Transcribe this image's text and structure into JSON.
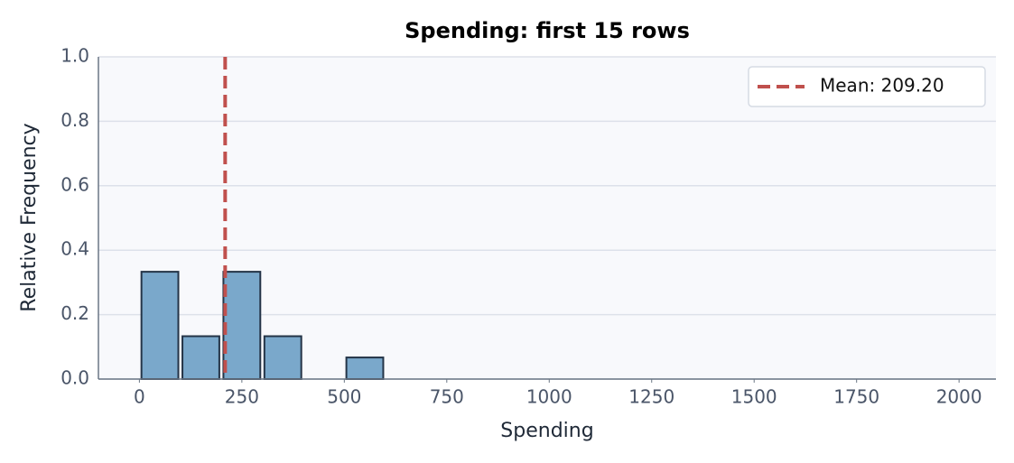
{
  "chart_data": {
    "type": "histogram",
    "title": "Spending: first 15 rows",
    "x_label": "Spending",
    "y_label": "Relative Frequency",
    "bins": [
      0,
      100,
      200,
      300,
      400,
      500,
      600
    ],
    "values": [
      0.333,
      0.133,
      0.333,
      0.133,
      0,
      0.067
    ],
    "color": "#7aa8cb",
    "edge_color": "#243447",
    "xlim": [
      -100,
      2090
    ],
    "xticks": [
      0,
      250,
      500,
      750,
      1000,
      1250,
      1500,
      1750,
      2000
    ],
    "ylim": [
      0,
      1
    ],
    "yticks": [
      {
        "value": 0,
        "label": "0.0"
      },
      0.2,
      0.4,
      0.6,
      0.8,
      {
        "value": 1,
        "label": "1.0"
      }
    ],
    "grid": true,
    "mean": 209.2,
    "mean_label": "Mean: 209.20",
    "mean_color": "#c0504d",
    "legend_position": "upper right"
  }
}
